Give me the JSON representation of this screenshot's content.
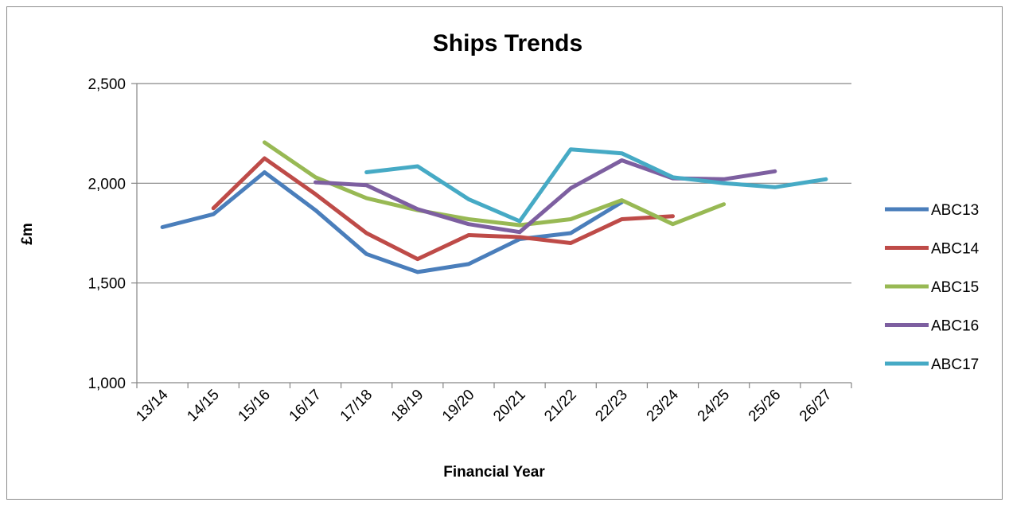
{
  "chart_data": {
    "type": "line",
    "title": "Ships Trends",
    "xlabel": "Financial  Year",
    "ylabel": "£m",
    "categories": [
      "13/14",
      "14/15",
      "15/16",
      "16/17",
      "17/18",
      "18/19",
      "19/20",
      "20/21",
      "21/22",
      "22/23",
      "23/24",
      "24/25",
      "25/26",
      "26/27"
    ],
    "ylim": [
      1000,
      2500
    ],
    "y_ticks": [
      1000,
      1500,
      2000,
      2500
    ],
    "y_tick_labels": [
      "1,000",
      "1,500",
      "2,000",
      "2,500"
    ],
    "grid": true,
    "legend_position": "right",
    "series": [
      {
        "name": "ABC13",
        "color": "#4a7ebb",
        "values": [
          1780,
          1845,
          2055,
          1865,
          1645,
          1555,
          1595,
          1720,
          1750,
          1905,
          null,
          null,
          null,
          null
        ]
      },
      {
        "name": "ABC14",
        "color": "#be4b48",
        "values": [
          null,
          1875,
          2125,
          1945,
          1750,
          1620,
          1740,
          1730,
          1700,
          1820,
          1835,
          null,
          null,
          null
        ]
      },
      {
        "name": "ABC15",
        "color": "#98b954",
        "values": [
          null,
          null,
          2205,
          2030,
          1925,
          1865,
          1820,
          1790,
          1820,
          1915,
          1795,
          1895,
          null,
          null
        ]
      },
      {
        "name": "ABC16",
        "color": "#7d5fa0",
        "values": [
          null,
          null,
          null,
          2005,
          1990,
          1870,
          1795,
          1755,
          1975,
          2115,
          2025,
          2020,
          2060,
          null
        ]
      },
      {
        "name": "ABC17",
        "color": "#46aac5",
        "values": [
          null,
          null,
          null,
          null,
          2055,
          2085,
          1920,
          1810,
          2170,
          2150,
          2030,
          2000,
          1980,
          2020
        ]
      }
    ]
  }
}
